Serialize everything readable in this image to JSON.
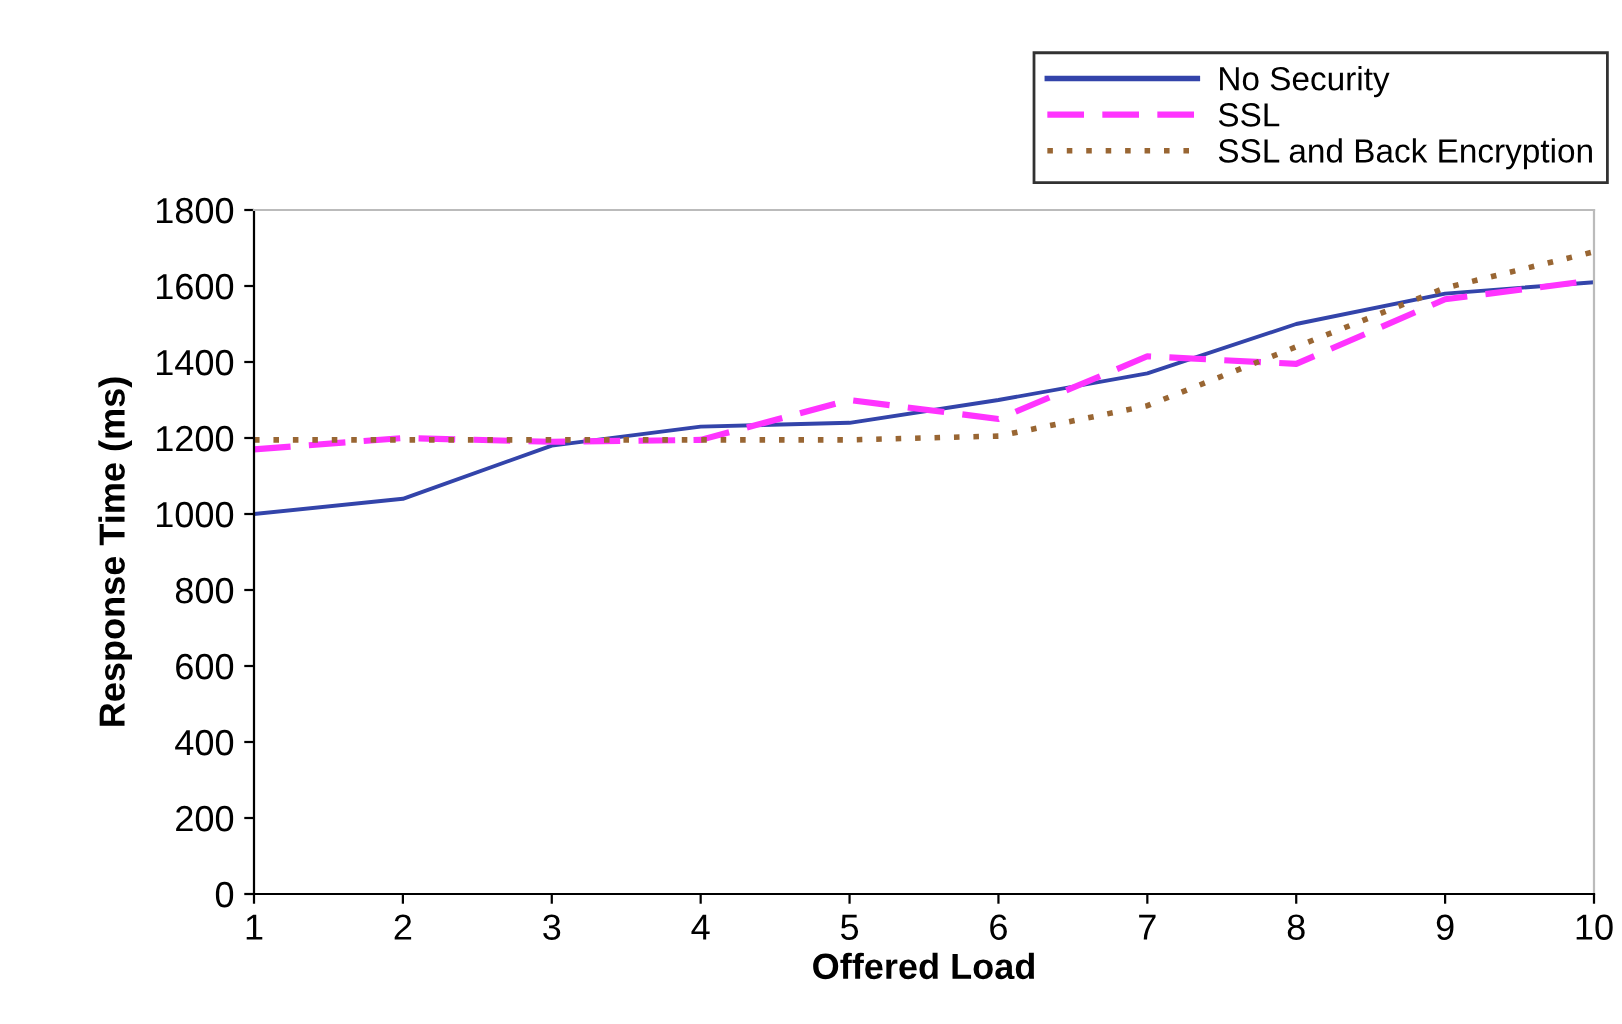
{
  "chart_data": {
    "type": "line",
    "xlabel": "Offered Load",
    "ylabel": "Response Time (ms)",
    "x": [
      1,
      2,
      3,
      4,
      5,
      6,
      7,
      8,
      9,
      10
    ],
    "series": [
      {
        "name": "No Security",
        "color": "#3344aa",
        "line_style": "solid",
        "values": [
          1000,
          1040,
          1180,
          1230,
          1240,
          1300,
          1370,
          1500,
          1580,
          1610
        ]
      },
      {
        "name": "SSL",
        "color": "#ff33ff",
        "line_style": "dashed",
        "values": [
          1170,
          1200,
          1190,
          1195,
          1300,
          1250,
          1415,
          1395,
          1565,
          1615
        ]
      },
      {
        "name": "SSL and Back Encryption",
        "color": "#996633",
        "line_style": "dotted",
        "values": [
          1195,
          1195,
          1195,
          1195,
          1195,
          1205,
          1285,
          1440,
          1595,
          1690
        ]
      }
    ],
    "xlim": [
      1,
      10
    ],
    "xticks": [
      1,
      2,
      3,
      4,
      5,
      6,
      7,
      8,
      9,
      10
    ],
    "ylim": [
      0,
      1800
    ],
    "yticks": [
      0,
      200,
      400,
      600,
      800,
      1000,
      1200,
      1400,
      1600,
      1800
    ],
    "grid": false,
    "legend": "top right",
    "marker": "none"
  }
}
